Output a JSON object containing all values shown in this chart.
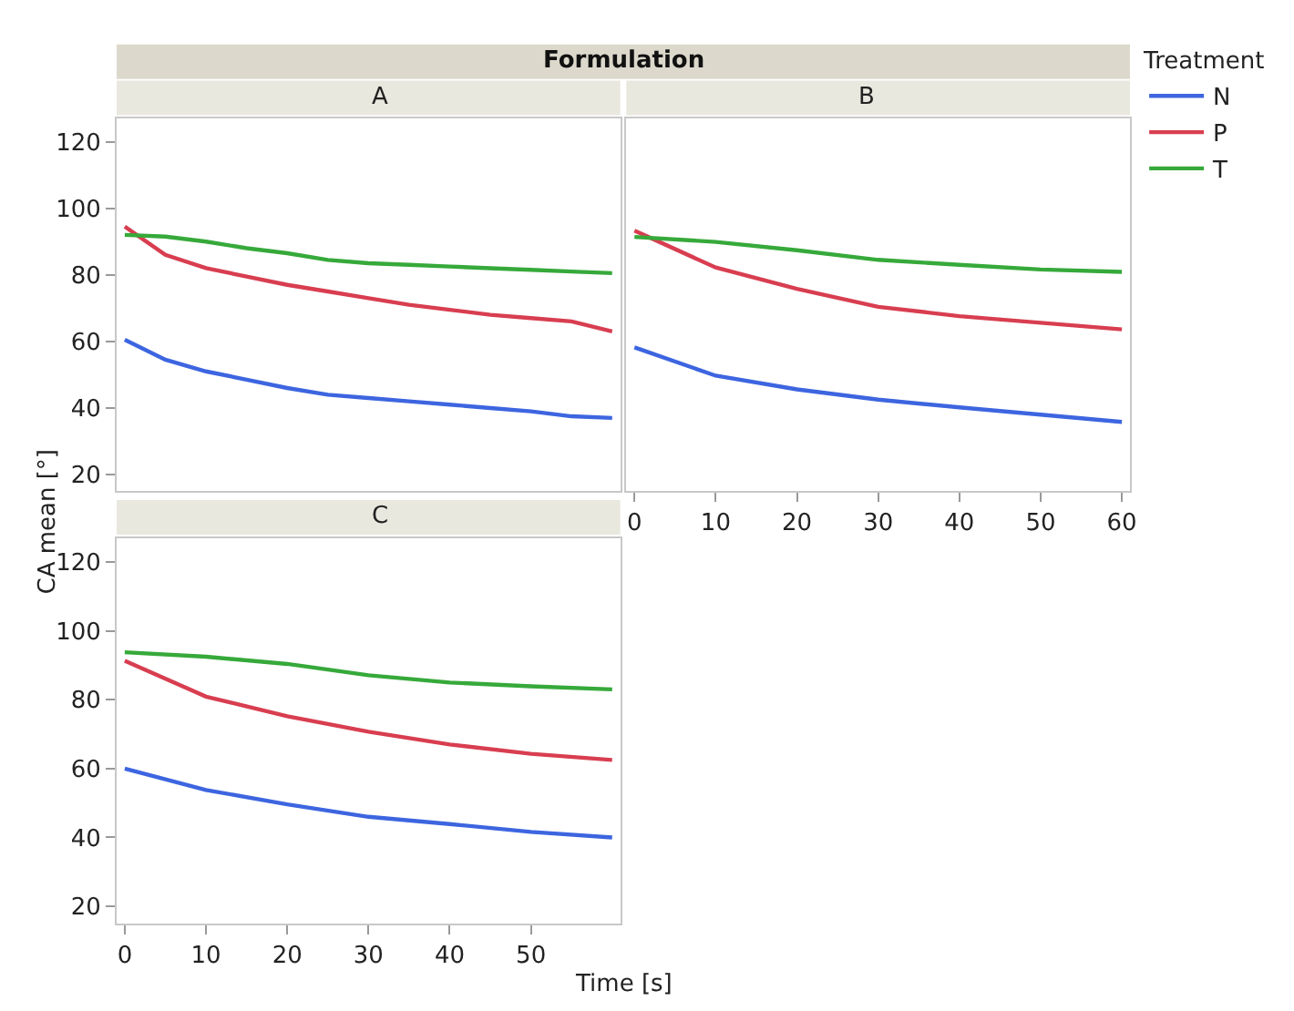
{
  "chart_data": [
    {
      "type": "line",
      "title": "A",
      "annotations": [
        "Formulation"
      ],
      "legend_title": "Treatment",
      "legend": "top right",
      "tick_labels": "y",
      "x": [
        0,
        5,
        10,
        15,
        20,
        25,
        30,
        35,
        40,
        45,
        50,
        55,
        60
      ],
      "xlim": [
        -1,
        61
      ],
      "ylim": [
        15,
        127
      ],
      "yticks": [
        20,
        40,
        60,
        80,
        100,
        120
      ],
      "series": [
        {
          "name": "N",
          "color": "#3d65e0",
          "values": [
            60.5,
            54.5,
            51,
            48.5,
            46,
            44,
            43,
            42,
            41,
            40,
            39,
            37.5,
            37
          ]
        },
        {
          "name": "P",
          "color": "#d83e50",
          "values": [
            94.5,
            86,
            82,
            79.5,
            77,
            75,
            73,
            71,
            69.5,
            68,
            67,
            66,
            63
          ]
        },
        {
          "name": "T",
          "color": "#36a93a",
          "values": [
            92,
            91.5,
            90,
            88,
            86.5,
            84.5,
            83.5,
            83,
            82.5,
            82,
            81.5,
            81,
            80.5
          ]
        }
      ]
    },
    {
      "type": "line",
      "title": "B",
      "tick_labels": "x",
      "x": [
        0,
        10,
        20,
        30,
        40,
        50,
        60
      ],
      "xlim": [
        -1,
        61
      ],
      "xticks": [
        0,
        10,
        20,
        30,
        40,
        50,
        60
      ],
      "ylim": [
        15,
        127
      ],
      "series": [
        {
          "color": "#3d65e0",
          "values": [
            58.2,
            49.7,
            45.6,
            42.5,
            40.2,
            38,
            35.8
          ]
        },
        {
          "color": "#d83e50",
          "values": [
            93.3,
            82.2,
            75.8,
            70.4,
            67.6,
            65.6,
            63.6
          ]
        },
        {
          "color": "#36a93a",
          "values": [
            91.4,
            89.9,
            87.4,
            84.5,
            83,
            81.6,
            80.9
          ]
        }
      ]
    },
    {
      "type": "line",
      "title": "C",
      "xlabel": "Time [s]",
      "ylabel": "CA mean [°]",
      "x": [
        0,
        10,
        20,
        30,
        40,
        50,
        60
      ],
      "xlim": [
        -1,
        61
      ],
      "xticks": [
        0,
        10,
        20,
        30,
        40,
        50
      ],
      "ylim": [
        15,
        127
      ],
      "yticks": [
        20,
        40,
        60,
        80,
        100,
        120
      ],
      "series": [
        {
          "color": "#3d65e0",
          "values": [
            60,
            53.8,
            49.6,
            46,
            43.9,
            41.6,
            40
          ]
        },
        {
          "color": "#d83e50",
          "values": [
            91.3,
            80.9,
            75.2,
            70.7,
            67,
            64.3,
            62.5
          ]
        },
        {
          "color": "#36a93a",
          "values": [
            93.8,
            92.5,
            90.4,
            87.1,
            85,
            83.9,
            83
          ]
        }
      ]
    }
  ]
}
